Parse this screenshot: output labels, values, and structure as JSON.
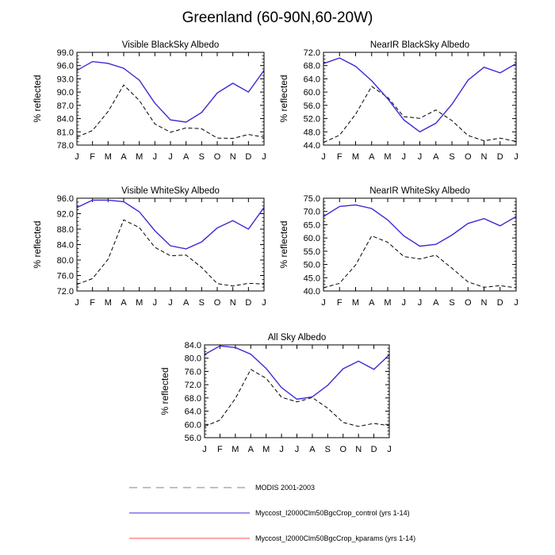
{
  "title": "Greenland (60-90N,60-20W)",
  "colors": {
    "modis": "#000000",
    "modis_legend": "#9a9a9a",
    "control": "#3a2ad4",
    "kparams": "#ff4d5a"
  },
  "legend": [
    {
      "label": "MODIS 2001-2003",
      "style": "dashed",
      "color": "#9a9a9a"
    },
    {
      "label": "Myccost_I2000Clm50BgcCrop_control (yrs 1-14)",
      "style": "solid",
      "color": "#3a2ad4"
    },
    {
      "label": "Myccost_I2000Clm50BgcCrop_kparams (yrs 1-14)",
      "style": "solid",
      "color": "#ff4d5a"
    }
  ],
  "chart_data": [
    {
      "type": "line",
      "title": "Visible BlackSky Albedo",
      "ylabel": "% reflected",
      "categories": [
        "J",
        "F",
        "M",
        "A",
        "M",
        "J",
        "J",
        "A",
        "S",
        "O",
        "N",
        "D",
        "J"
      ],
      "ylim": [
        78.0,
        99.0
      ],
      "yticks": [
        "78.0",
        "81.0",
        "84.0",
        "87.0",
        "90.0",
        "93.0",
        "96.0",
        "99.0"
      ],
      "series": [
        {
          "name": "MODIS 2001-2003",
          "values": [
            79.8,
            81.3,
            85.6,
            91.6,
            88.1,
            82.8,
            80.9,
            81.9,
            81.7,
            79.6,
            79.5,
            80.4,
            79.8
          ]
        },
        {
          "name": "Myccost_I2000Clm50BgcCrop_control (yrs 1-14)",
          "values": [
            94.9,
            96.9,
            96.5,
            95.4,
            92.7,
            87.5,
            83.7,
            83.2,
            85.4,
            89.8,
            92.0,
            90.0,
            94.9
          ]
        }
      ]
    },
    {
      "type": "line",
      "title": "NearIR BlackSky Albedo",
      "ylabel": "% reflected",
      "categories": [
        "J",
        "F",
        "M",
        "A",
        "M",
        "J",
        "J",
        "A",
        "S",
        "O",
        "N",
        "D",
        "J"
      ],
      "ylim": [
        44.0,
        72.0
      ],
      "yticks": [
        "44.0",
        "48.0",
        "52.0",
        "56.0",
        "60.0",
        "64.0",
        "68.0",
        "72.0"
      ],
      "series": [
        {
          "name": "MODIS 2001-2003",
          "values": [
            44.8,
            47.0,
            53.3,
            61.7,
            58.4,
            52.6,
            52.1,
            54.6,
            51.4,
            46.9,
            45.3,
            46.1,
            45.1
          ]
        },
        {
          "name": "Myccost_I2000Clm50BgcCrop_control (yrs 1-14)",
          "values": [
            68.6,
            70.3,
            67.8,
            63.4,
            58.0,
            51.6,
            48.0,
            50.6,
            56.3,
            63.6,
            67.5,
            65.8,
            68.6
          ]
        }
      ]
    },
    {
      "type": "line",
      "title": "Visible WhiteSky Albedo",
      "ylabel": "% reflected",
      "categories": [
        "J",
        "F",
        "M",
        "A",
        "M",
        "J",
        "J",
        "A",
        "S",
        "O",
        "N",
        "D",
        "J"
      ],
      "ylim": [
        72.0,
        96.0
      ],
      "yticks": [
        "72.0",
        "76.0",
        "80.0",
        "84.0",
        "88.0",
        "92.0",
        "96.0"
      ],
      "series": [
        {
          "name": "MODIS 2001-2003",
          "values": [
            73.7,
            75.2,
            80.2,
            90.4,
            88.4,
            83.3,
            81.1,
            81.3,
            78.1,
            73.9,
            73.3,
            74.0,
            73.8
          ]
        },
        {
          "name": "Myccost_I2000Clm50BgcCrop_control (yrs 1-14)",
          "values": [
            93.6,
            95.5,
            95.5,
            95.1,
            92.5,
            87.6,
            83.7,
            82.9,
            84.7,
            88.3,
            90.2,
            88.0,
            93.6
          ]
        }
      ]
    },
    {
      "type": "line",
      "title": "NearIR WhiteSky Albedo",
      "ylabel": "% reflected",
      "categories": [
        "J",
        "F",
        "M",
        "A",
        "M",
        "J",
        "J",
        "A",
        "S",
        "O",
        "N",
        "D",
        "J"
      ],
      "ylim": [
        40.0,
        75.0
      ],
      "yticks": [
        "40.0",
        "45.0",
        "50.0",
        "55.0",
        "60.0",
        "65.0",
        "70.0",
        "75.0"
      ],
      "series": [
        {
          "name": "MODIS 2001-2003",
          "values": [
            41.2,
            42.9,
            49.8,
            60.8,
            58.4,
            53.0,
            52.1,
            53.5,
            48.6,
            43.4,
            41.4,
            42.0,
            41.2
          ]
        },
        {
          "name": "Myccost_I2000Clm50BgcCrop_control (yrs 1-14)",
          "values": [
            68.1,
            71.9,
            72.5,
            71.1,
            66.8,
            60.8,
            56.9,
            57.6,
            61.1,
            65.5,
            67.3,
            64.6,
            68.1
          ]
        }
      ]
    },
    {
      "type": "line",
      "title": "All Sky Albedo",
      "ylabel": "% reflected",
      "categories": [
        "J",
        "F",
        "M",
        "A",
        "M",
        "J",
        "J",
        "A",
        "S",
        "O",
        "N",
        "D",
        "J"
      ],
      "ylim": [
        56.0,
        84.0
      ],
      "yticks": [
        "56.0",
        "60.0",
        "64.0",
        "68.0",
        "72.0",
        "76.0",
        "80.0",
        "84.0"
      ],
      "series": [
        {
          "name": "MODIS 2001-2003",
          "values": [
            59.4,
            61.3,
            67.8,
            76.6,
            73.9,
            68.2,
            66.8,
            68.1,
            64.9,
            60.6,
            59.4,
            60.3,
            59.6
          ]
        },
        {
          "name": "Myccost_I2000Clm50BgcCrop_control (yrs 1-14)",
          "values": [
            81.1,
            83.7,
            83.2,
            81.2,
            76.9,
            71.1,
            67.6,
            68.3,
            71.8,
            76.8,
            79.1,
            76.6,
            81.0
          ]
        }
      ]
    }
  ]
}
